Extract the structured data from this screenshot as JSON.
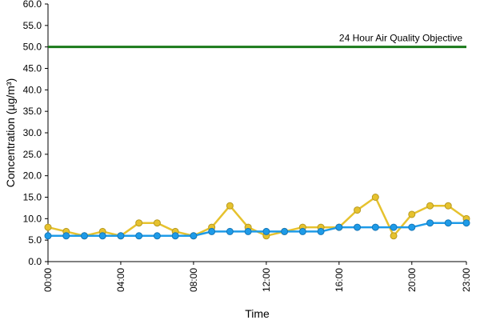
{
  "chart_data": {
    "type": "line",
    "title": "",
    "xlabel": "Time",
    "ylabel": "Concentration (µg/m³)",
    "ylim": [
      0,
      60
    ],
    "y_ticks": [
      "0.0",
      "5.0",
      "10.0",
      "15.0",
      "20.0",
      "25.0",
      "30.0",
      "35.0",
      "40.0",
      "45.0",
      "50.0",
      "55.0",
      "60.0"
    ],
    "x_ticks": [
      "00:00",
      "04:00",
      "08:00",
      "12:00",
      "16:00",
      "20:00",
      "23:00"
    ],
    "x_tick_hours": [
      0,
      4,
      8,
      12,
      16,
      20,
      23
    ],
    "x": [
      0,
      1,
      2,
      3,
      4,
      5,
      6,
      7,
      8,
      9,
      10,
      11,
      12,
      13,
      14,
      15,
      16,
      17,
      18,
      19,
      20,
      21,
      22,
      23
    ],
    "grid": false,
    "legend": "none",
    "series": [
      {
        "color": "#e6c22e",
        "values": [
          8,
          7,
          6,
          7,
          6,
          9,
          9,
          7,
          6,
          8,
          13,
          8,
          6,
          7,
          8,
          8,
          8,
          12,
          15,
          6,
          11,
          13,
          13,
          10
        ]
      },
      {
        "color": "#1e9be8",
        "values": [
          6,
          6,
          6,
          6,
          6,
          6,
          6,
          6,
          6,
          7,
          7,
          7,
          7,
          7,
          7,
          7,
          8,
          8,
          8,
          8,
          8,
          9,
          9,
          9
        ]
      }
    ],
    "objective": {
      "value": 50,
      "label": "24 Hour Air Quality Objective",
      "color": "#1a7a1a"
    }
  }
}
